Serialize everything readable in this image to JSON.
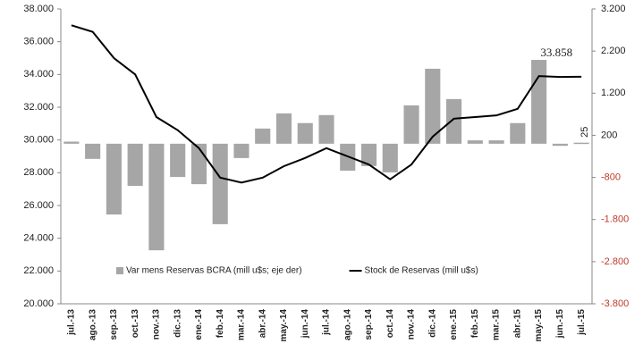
{
  "chart_data": {
    "type": "bar_line",
    "categories": [
      "jul.-13",
      "ago.-13",
      "sep.-13",
      "oct.-13",
      "nov.-13",
      "dic.-13",
      "ene.-14",
      "feb.-14",
      "mar.-14",
      "abr.-14",
      "may.-14",
      "jun.-14",
      "jul.-14",
      "ago.-14",
      "sep.-14",
      "oct.-14",
      "nov.-14",
      "dic.-14",
      "ene.-15",
      "feb.-15",
      "mar.-15",
      "abr.-15",
      "may.-15",
      "jun.-15",
      "jul.-15"
    ],
    "series": [
      {
        "name": "Var mens Reservas BCRA (mill u$s; eje der)",
        "type": "bar",
        "axis": "y2",
        "color": "#a6a6a6",
        "values": [
          50,
          -360,
          -1680,
          -1000,
          -2530,
          -790,
          -960,
          -1910,
          -340,
          360,
          720,
          490,
          680,
          -640,
          -530,
          -680,
          910,
          1780,
          1060,
          80,
          80,
          490,
          1990,
          -50,
          25
        ],
        "value_labels": [
          null,
          null,
          null,
          null,
          null,
          null,
          null,
          null,
          null,
          null,
          null,
          null,
          null,
          null,
          null,
          null,
          null,
          null,
          null,
          null,
          null,
          null,
          null,
          null,
          "25"
        ]
      },
      {
        "name": "Stock de Reservas (mill u$s)",
        "type": "line",
        "color": "#000000",
        "values": [
          37000,
          36600,
          35000,
          34000,
          31400,
          30600,
          29500,
          27700,
          27400,
          27700,
          28400,
          28900,
          29500,
          29000,
          28500,
          27600,
          28500,
          30200,
          31300,
          31400,
          31500,
          31900,
          33900,
          33850,
          33858
        ],
        "value_labels": [
          null,
          null,
          null,
          null,
          null,
          null,
          null,
          null,
          null,
          null,
          null,
          null,
          null,
          null,
          null,
          null,
          null,
          null,
          null,
          null,
          null,
          null,
          null,
          null,
          "33.858"
        ]
      }
    ],
    "ylim": [
      20000,
      38000
    ],
    "yticks": [
      {
        "value": 20000,
        "label": "20.000"
      },
      {
        "value": 22000,
        "label": "22.000"
      },
      {
        "value": 24000,
        "label": "24.000"
      },
      {
        "value": 26000,
        "label": "26.000"
      },
      {
        "value": 28000,
        "label": "28.000"
      },
      {
        "value": 30000,
        "label": "30.000"
      },
      {
        "value": 32000,
        "label": "32.000"
      },
      {
        "value": 34000,
        "label": "34.000"
      },
      {
        "value": 36000,
        "label": "36.000"
      },
      {
        "value": 38000,
        "label": "38.000"
      }
    ],
    "y2lim": [
      -3800,
      3200
    ],
    "y2ticks": [
      {
        "value": 3200,
        "label": "3.200"
      },
      {
        "value": 2200,
        "label": "2.200"
      },
      {
        "value": 1200,
        "label": "1.200"
      },
      200,
      -800,
      {
        "value": -1800,
        "label": "-1.800"
      },
      {
        "value": -2800,
        "label": "-2.800"
      },
      {
        "value": -3800,
        "label": "-3.800"
      }
    ],
    "legend": "bottom",
    "grid": false
  }
}
